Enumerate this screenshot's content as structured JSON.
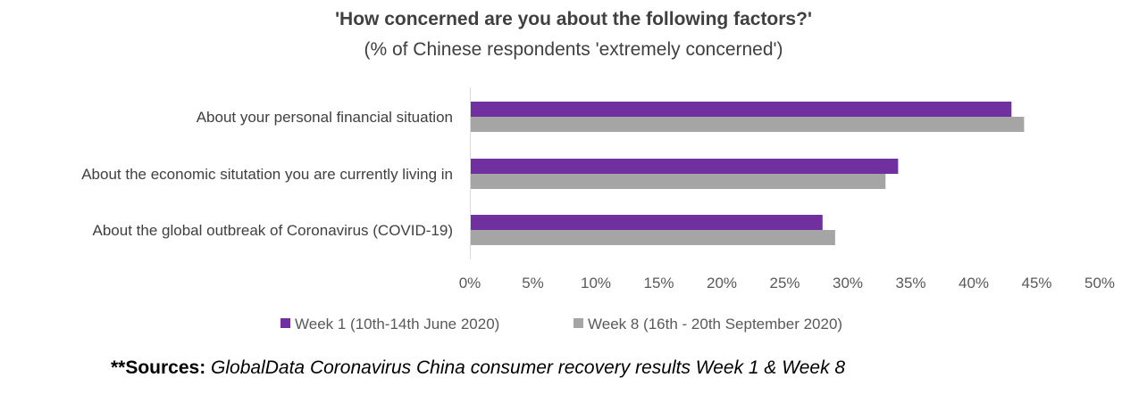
{
  "chart_data": {
    "type": "bar",
    "orientation": "horizontal",
    "title": "'How concerned are you about the following factors?'",
    "subtitle": "(% of Chinese respondents 'extremely concerned')",
    "categories": [
      "About your personal financial situation",
      "About the economic situtation you are currently living in",
      "About the global outbreak of Coronavirus (COVID-19)"
    ],
    "series": [
      {
        "name": "Week 1 (10th-14th June 2020)",
        "color": "#7030a0",
        "values": [
          43,
          34,
          28
        ]
      },
      {
        "name": "Week 8 (16th - 20th September 2020)",
        "color": "#a5a5a5",
        "values": [
          44,
          33,
          29
        ]
      }
    ],
    "xlim": [
      0,
      50
    ],
    "xticks": [
      0,
      5,
      10,
      15,
      20,
      25,
      30,
      35,
      40,
      45,
      50
    ],
    "xtick_labels": [
      "0%",
      "5%",
      "10%",
      "15%",
      "20%",
      "25%",
      "30%",
      "35%",
      "40%",
      "45%",
      "50%"
    ],
    "grid": false,
    "legend_position": "bottom"
  },
  "source": {
    "label": "**Sources:",
    "text": " GlobalData Coronavirus China consumer recovery results Week 1 & Week 8"
  }
}
